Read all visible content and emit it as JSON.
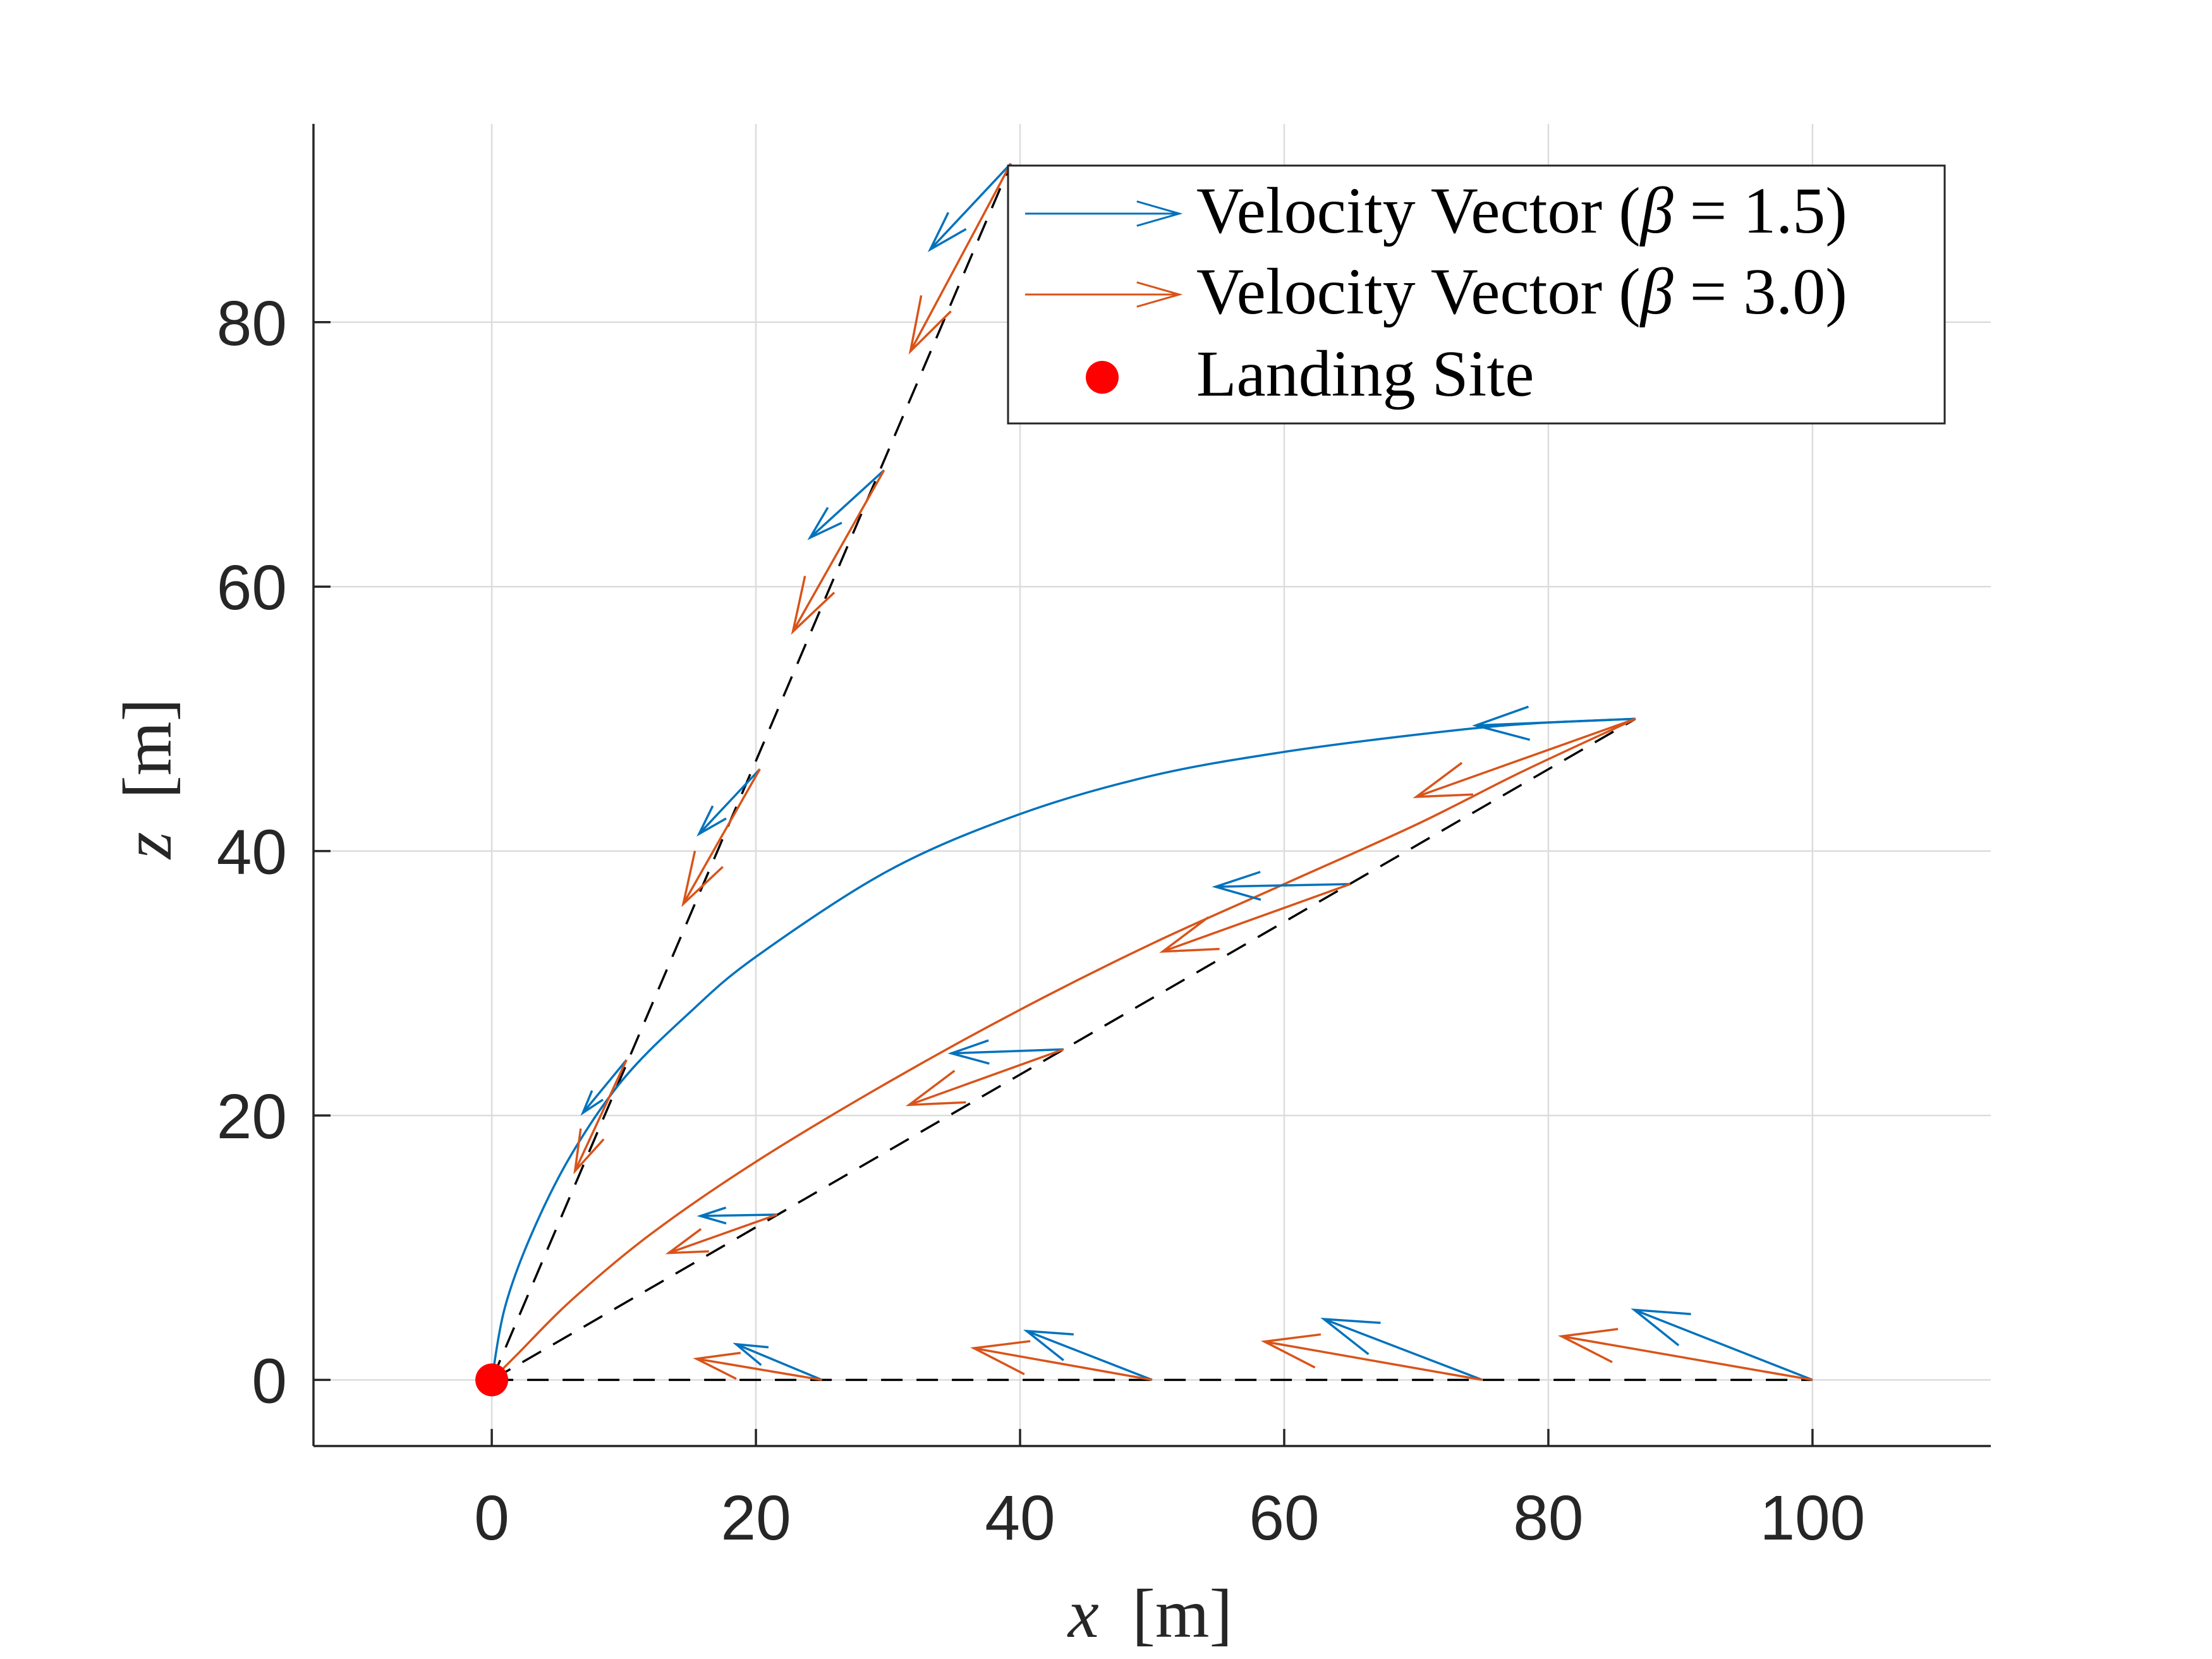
{
  "chart_data": {
    "type": "quiver",
    "title": "",
    "xlabel_var": "x",
    "xlabel_unit": "[m]",
    "ylabel_var": "z",
    "ylabel_unit": "[m]",
    "xlim": [
      -13.5,
      113.5
    ],
    "ylim": [
      -5,
      95
    ],
    "xticks": [
      0,
      20,
      40,
      60,
      80,
      100
    ],
    "yticks": [
      0,
      20,
      40,
      60,
      80
    ],
    "grid": true,
    "legend_position": "top-right",
    "colors": {
      "beta15": "#0072BD",
      "beta30": "#D95319",
      "landing": "#FF0000",
      "guide": "#000000",
      "grid": "#DCDCDC",
      "axis": "#262626"
    },
    "legend": [
      {
        "key": "beta15",
        "kind": "arrow",
        "label_prefix": "Velocity Vector (",
        "symbol": "β",
        "label_suffix": " = 1.5)"
      },
      {
        "key": "beta30",
        "kind": "arrow",
        "label_prefix": "Velocity Vector (",
        "symbol": "β",
        "label_suffix": " = 3.0)"
      },
      {
        "key": "landing",
        "kind": "dot",
        "label_prefix": "Landing Site",
        "symbol": "",
        "label_suffix": ""
      }
    ],
    "guide_lines": [
      {
        "angle_deg": 0,
        "end": [
          100,
          0
        ]
      },
      {
        "angle_deg": 30,
        "end": [
          86.6,
          50
        ]
      },
      {
        "angle_deg": 66,
        "end": [
          39.3,
          92
        ]
      }
    ],
    "trajectories": {
      "beta15": [
        [
          86.6,
          50
        ],
        [
          78,
          49.6
        ],
        [
          70,
          48.8
        ],
        [
          60,
          47.5
        ],
        [
          50,
          45.7
        ],
        [
          40,
          42.8
        ],
        [
          30,
          38.5
        ],
        [
          20,
          32.0
        ],
        [
          15,
          27.8
        ],
        [
          10,
          22.8
        ],
        [
          6,
          17.0
        ],
        [
          3,
          11.0
        ],
        [
          1,
          5.5
        ],
        [
          0,
          0
        ]
      ],
      "beta30": [
        [
          86.6,
          50
        ],
        [
          78,
          46.0
        ],
        [
          70,
          42.0
        ],
        [
          60,
          37.5
        ],
        [
          50,
          33.0
        ],
        [
          40,
          28.0
        ],
        [
          30,
          22.5
        ],
        [
          20,
          16.5
        ],
        [
          12,
          11.0
        ],
        [
          6,
          6.0
        ],
        [
          2,
          2.0
        ],
        [
          0,
          0
        ]
      ]
    },
    "vectors": {
      "beta15": [
        {
          "start": [
            25,
            0
          ],
          "end": [
            18.5,
            2.7
          ]
        },
        {
          "start": [
            50,
            0
          ],
          "end": [
            40.5,
            3.7
          ]
        },
        {
          "start": [
            75,
            0
          ],
          "end": [
            63,
            4.6
          ]
        },
        {
          "start": [
            100,
            0
          ],
          "end": [
            86.5,
            5.3
          ]
        },
        {
          "start": [
            21.6,
            12.5
          ],
          "end": [
            15.8,
            12.4
          ]
        },
        {
          "start": [
            43.3,
            25
          ],
          "end": [
            34.8,
            24.7
          ]
        },
        {
          "start": [
            65,
            37.5
          ],
          "end": [
            54.8,
            37.3
          ]
        },
        {
          "start": [
            86.6,
            50
          ],
          "end": [
            74.5,
            49.5
          ]
        },
        {
          "start": [
            10.2,
            24.2
          ],
          "end": [
            6.9,
            20.2
          ]
        },
        {
          "start": [
            20.3,
            46.2
          ],
          "end": [
            15.7,
            41.3
          ]
        },
        {
          "start": [
            29.7,
            68.8
          ],
          "end": [
            24.1,
            63.7
          ]
        },
        {
          "start": [
            39.3,
            92
          ],
          "end": [
            33.2,
            85.5
          ]
        }
      ],
      "beta30": [
        {
          "start": [
            25,
            0
          ],
          "end": [
            15.5,
            1.6
          ]
        },
        {
          "start": [
            50,
            0
          ],
          "end": [
            36.5,
            2.4
          ]
        },
        {
          "start": [
            75,
            0
          ],
          "end": [
            58.5,
            2.9
          ]
        },
        {
          "start": [
            100,
            0
          ],
          "end": [
            81,
            3.3
          ]
        },
        {
          "start": [
            21.6,
            12.5
          ],
          "end": [
            13.4,
            9.6
          ]
        },
        {
          "start": [
            43.3,
            25
          ],
          "end": [
            31.6,
            20.8
          ]
        },
        {
          "start": [
            65,
            37.5
          ],
          "end": [
            50.8,
            32.4
          ]
        },
        {
          "start": [
            86.6,
            50
          ],
          "end": [
            70,
            44.1
          ]
        },
        {
          "start": [
            10.2,
            24.2
          ],
          "end": [
            6.3,
            15.8
          ]
        },
        {
          "start": [
            20.3,
            46.2
          ],
          "end": [
            14.5,
            36.0
          ]
        },
        {
          "start": [
            29.7,
            68.8
          ],
          "end": [
            22.8,
            56.6
          ]
        },
        {
          "start": [
            39.3,
            92
          ],
          "end": [
            31.7,
            77.8
          ]
        }
      ]
    },
    "landing_site": [
      0,
      0
    ]
  }
}
